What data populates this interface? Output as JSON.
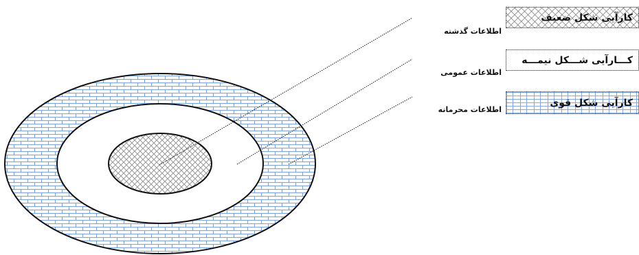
{
  "legend": [
    {
      "key": "weak",
      "label": "کارآیی شکل ضعیف",
      "info": "اطلاعات گذشته",
      "pattern": "crosshatch",
      "color": "#8c8c8c"
    },
    {
      "key": "semi",
      "label": "کـــارآیی شـــکل نیمـــه",
      "info": "اطلاعات عمومی",
      "pattern": "plain",
      "color": "#ffffff"
    },
    {
      "key": "strong",
      "label": "کارآیی شکل قوی",
      "info": "اطلاعات محرمانه",
      "pattern": "brick",
      "color": "#7aa3dc"
    }
  ]
}
